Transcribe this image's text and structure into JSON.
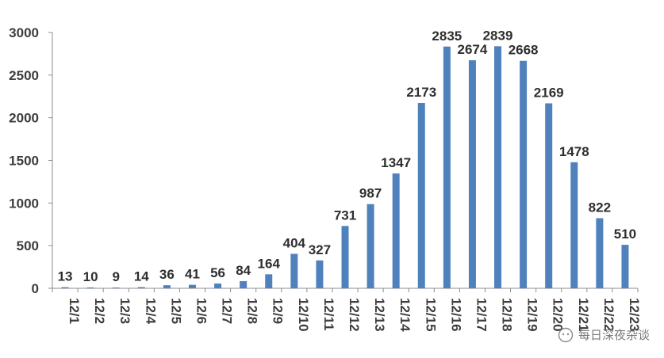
{
  "chart_data": {
    "type": "bar",
    "categories": [
      "12/1",
      "12/2",
      "12/3",
      "12/4",
      "12/5",
      "12/6",
      "12/7",
      "12/8",
      "12/9",
      "12/10",
      "12/11",
      "12/12",
      "12/13",
      "12/14",
      "12/15",
      "12/16",
      "12/17",
      "12/18",
      "12/19",
      "12/20",
      "12/21",
      "12/22",
      "12/23"
    ],
    "values": [
      13,
      10,
      9,
      14,
      36,
      41,
      56,
      84,
      164,
      404,
      327,
      731,
      987,
      1347,
      2173,
      2835,
      2674,
      2839,
      2668,
      2169,
      1478,
      822,
      510
    ],
    "data_labels": [
      "13",
      "10",
      "9",
      "14",
      "36",
      "41",
      "56",
      "84",
      "164",
      "404",
      "327",
      "731",
      "987",
      "1347",
      "2173",
      "2835",
      "2674",
      "2839",
      "2668",
      "2169",
      "1478",
      "822",
      "510"
    ],
    "title": "",
    "xlabel": "",
    "ylabel": "",
    "ylim": [
      0,
      3000
    ],
    "yticks": [
      "0",
      "500",
      "1000",
      "1500",
      "2000",
      "2500",
      "3000"
    ],
    "bar_color": "#4f81bd",
    "grid": false,
    "legend": "none"
  },
  "watermark": {
    "text": "每日深夜杂谈",
    "icon": "wechat-bubble-icon"
  }
}
